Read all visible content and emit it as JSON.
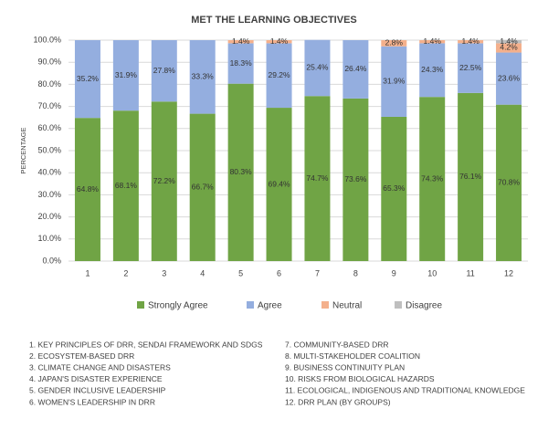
{
  "chart_data": {
    "type": "stacked_bar",
    "title": "MET THE LEARNING OBJECTIVES",
    "y_label": "PERCENTAGE",
    "categories": [
      "1",
      "2",
      "3",
      "4",
      "5",
      "6",
      "7",
      "8",
      "9",
      "10",
      "11",
      "12"
    ],
    "series": [
      {
        "name": "Strongly Agree",
        "color": "#70a445",
        "values": [
          64.8,
          68.1,
          72.2,
          66.7,
          80.3,
          69.4,
          74.7,
          73.6,
          65.3,
          74.3,
          76.1,
          70.8
        ],
        "value_labels": [
          "64.8%",
          "68.1%",
          "72.2%",
          "66.7%",
          "80.3%",
          "69.4%",
          "74.7%",
          "73.6%",
          "65.3%",
          "74.3%",
          "76.1%",
          "70.8%"
        ]
      },
      {
        "name": "Agree",
        "color": "#94aedf",
        "values": [
          35.2,
          31.9,
          27.8,
          33.3,
          18.3,
          29.2,
          25.4,
          26.4,
          31.9,
          24.3,
          22.5,
          23.6
        ],
        "value_labels": [
          "35.2%",
          "31.9%",
          "27.8%",
          "33.3%",
          "18.3%",
          "29.2%",
          "25.4%",
          "26.4%",
          "31.9%",
          "24.3%",
          "22.5%",
          "23.6%"
        ]
      },
      {
        "name": "Neutral",
        "color": "#f4b08c",
        "values": [
          null,
          null,
          null,
          null,
          1.4,
          1.4,
          null,
          null,
          2.8,
          1.4,
          1.4,
          4.2
        ],
        "value_labels": [
          null,
          null,
          null,
          null,
          "1.4%",
          "1.4%",
          null,
          null,
          "2.8%",
          "1.4%",
          "1.4%",
          "4.2%"
        ]
      },
      {
        "name": "Disagree",
        "color": "#bfbfbf",
        "values": [
          null,
          null,
          null,
          null,
          null,
          null,
          null,
          null,
          null,
          null,
          null,
          1.4
        ],
        "value_labels": [
          null,
          null,
          null,
          null,
          null,
          null,
          null,
          null,
          null,
          null,
          null,
          "1.4%"
        ]
      }
    ],
    "ylim": [
      0,
      100
    ],
    "yticks": [
      {
        "value": 0,
        "label": "0.0%"
      },
      {
        "value": 10,
        "label": "10.0%"
      },
      {
        "value": 20,
        "label": "20.0%"
      },
      {
        "value": 30,
        "label": "30.0%"
      },
      {
        "value": 40,
        "label": "40.0%"
      },
      {
        "value": 50,
        "label": "50.0%"
      },
      {
        "value": 60,
        "label": "60.0%"
      },
      {
        "value": 70,
        "label": "70.0%"
      },
      {
        "value": 80,
        "label": "80.0%"
      },
      {
        "value": 90,
        "label": "90.0%"
      },
      {
        "value": 100,
        "label": "100.0%"
      }
    ],
    "grid": true,
    "legend": "bottom",
    "notes": [
      "1. KEY PRINCIPLES OF DRR, SENDAI FRAMEWORK AND SDGS",
      "2. ECOSYSTEM-BASED DRR",
      "3. CLIMATE CHANGE AND DISASTERS",
      "4. JAPAN'S DISASTER EXPERIENCE",
      "5. GENDER INCLUSIVE LEADERSHIP",
      "6. WOMEN'S LEADERSHIP IN DRR",
      "7. COMMUNITY-BASED DRR",
      "8. MULTI-STAKEHOLDER COALITION",
      "9. BUSINESS CONTINUITY PLAN",
      "10. RISKS FROM BIOLOGICAL HAZARDS",
      "11. ECOLOGICAL, INDIGENOUS AND TRADITIONAL KNOWLEDGE",
      "12. DRR PLAN (BY GROUPS)"
    ]
  }
}
